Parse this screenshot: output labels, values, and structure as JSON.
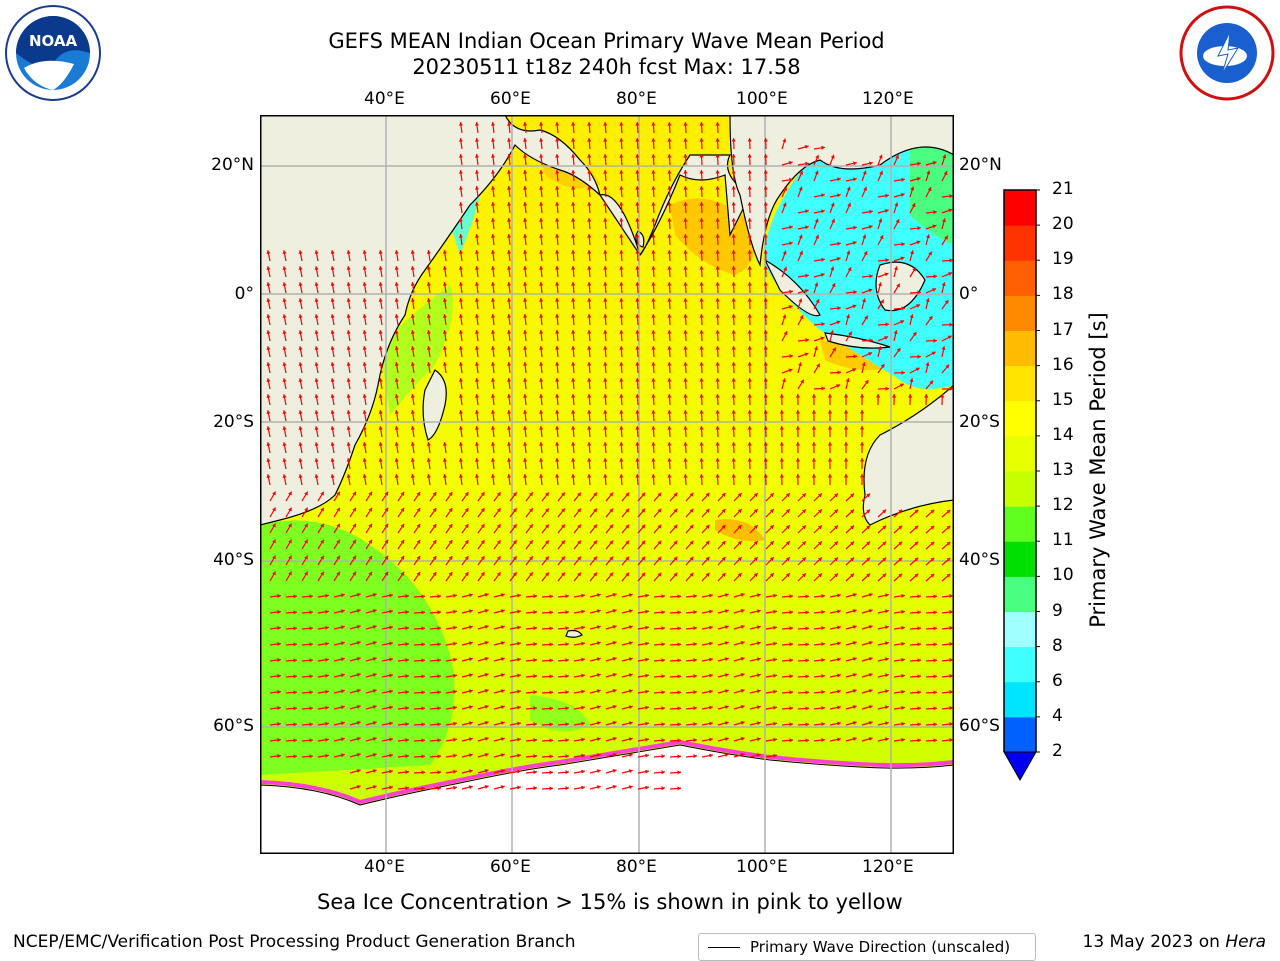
{
  "title_line1": "GEFS MEAN Indian Ocean Primary Wave Mean Period",
  "title_line2": "20230511 t18z 240h fcst   Max: 17.58",
  "top_lon_ticks": [
    "40°E",
    "60°E",
    "80°E",
    "100°E",
    "120°E"
  ],
  "bottom_lon_ticks": [
    "40°E",
    "60°E",
    "80°E",
    "100°E",
    "120°E"
  ],
  "left_lat_ticks": [
    "20°N",
    "0°",
    "20°S",
    "40°S",
    "60°S"
  ],
  "right_lat_ticks": [
    "20°N",
    "0°",
    "20°S",
    "40°S",
    "60°S"
  ],
  "legend": {
    "label": "Primary Wave Direction (unscaled)"
  },
  "colorbar": {
    "label": "Primary Wave Mean Period [s]",
    "ticks": [
      "2",
      "4",
      "6",
      "8",
      "9",
      "10",
      "11",
      "12",
      "13",
      "14",
      "15",
      "16",
      "17",
      "18",
      "19",
      "20",
      "21"
    ],
    "colors": [
      "#0061ff",
      "#00e5ff",
      "#40ffff",
      "#a0ffff",
      "#48ff80",
      "#00e000",
      "#60ff20",
      "#c8ff00",
      "#e8ff00",
      "#ffff00",
      "#ffe400",
      "#ffbc00",
      "#ff8a00",
      "#ff5f00",
      "#ff3300",
      "#ff0000"
    ],
    "extend_color": "#0000ee"
  },
  "sea_ice_note": "Sea Ice Concentration > 15% is shown in pink to yellow",
  "footer_left": "NCEP/EMC/Verification Post Processing Product Generation Branch",
  "footer_right_date": "13 May 2023 on ",
  "footer_right_machine": "Hera",
  "logos": {
    "left": "NOAA",
    "right": "NATIONAL WEATHER SERVICE"
  },
  "map_colors": {
    "land": "#efefdf",
    "ice": "#ffffff",
    "arrow": "#ff0000",
    "grid": "#b0b0b0"
  }
}
